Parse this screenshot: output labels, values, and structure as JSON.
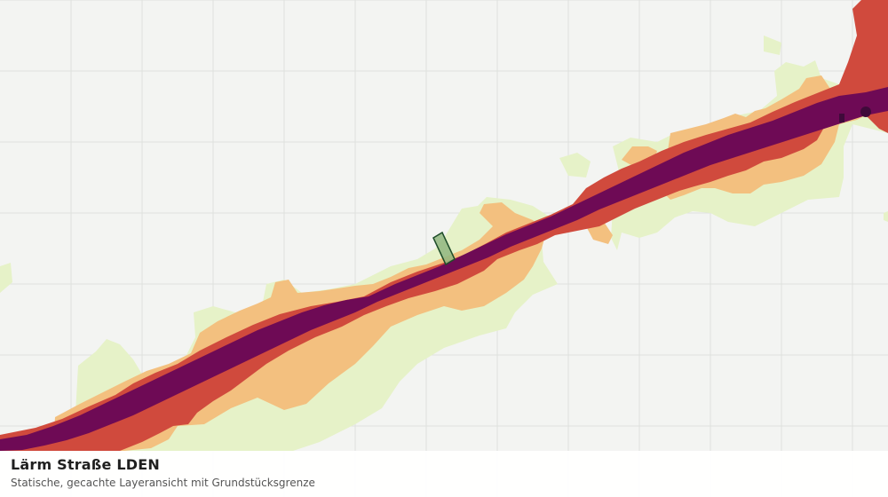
{
  "map": {
    "background_color": "#f3f4f2",
    "grid_color": "#dfe1de",
    "noise_layer": "Lärm Straße LDEN",
    "legend_colors": {
      "class_1": "#e6f2c8",
      "class_2": "#f3c07f",
      "class_3": "#d04a3d",
      "class_4": "#6e0a55",
      "class_5": "#3f0a3a"
    },
    "parcel": {
      "fill": "#8fb67f",
      "stroke": "#1f4d2a"
    }
  },
  "caption": {
    "title": "Lärm Straße LDEN",
    "subtitle": "Statische, gecachte Layeransicht mit Grundstücksgrenze"
  }
}
